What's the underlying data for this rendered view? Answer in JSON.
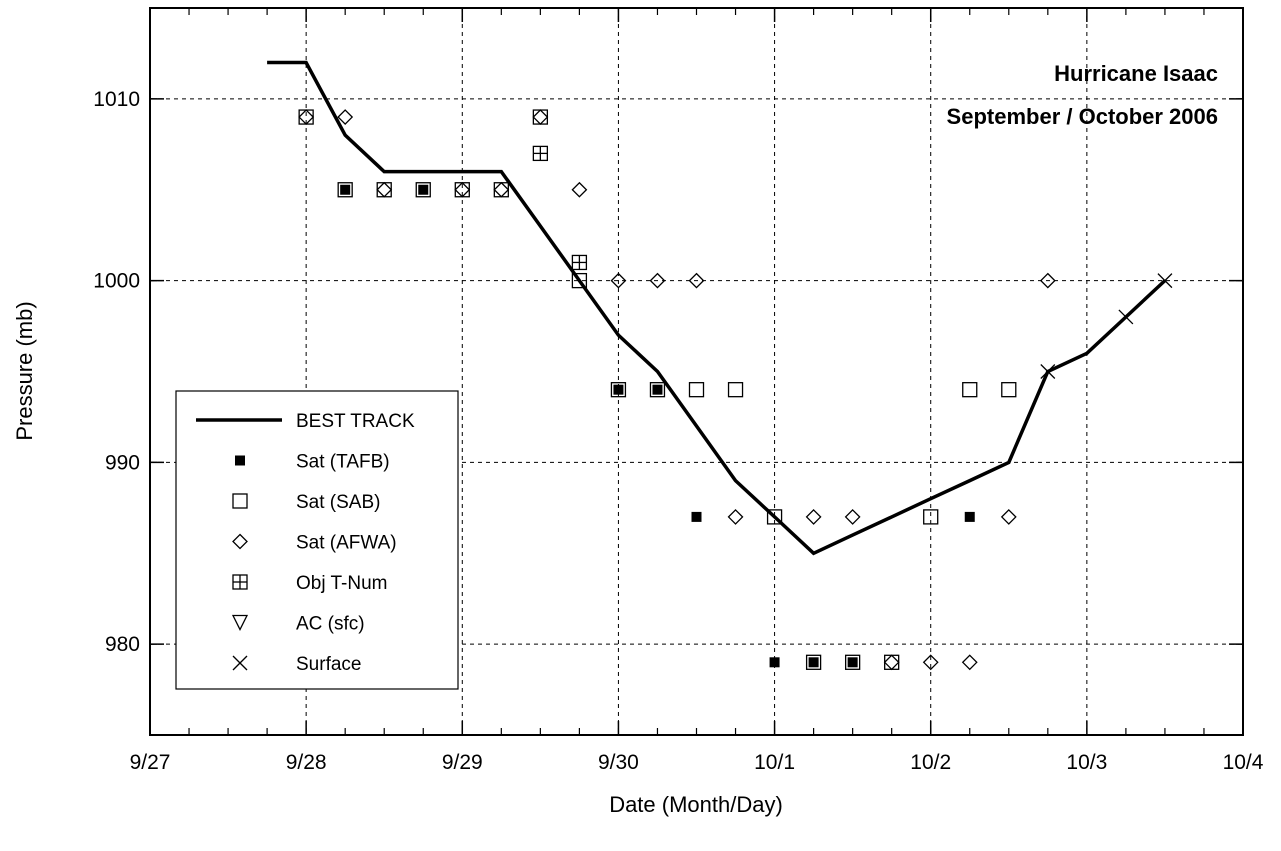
{
  "chart_data": {
    "type": "scatter",
    "title": "Hurricane Isaac",
    "subtitle": "September / October 2006",
    "xlabel": "Date (Month/Day)",
    "ylabel": "Pressure (mb)",
    "x_unit": "date (2006)",
    "xlim": [
      "2006-09-27 00:00",
      "2006-10-04 00:00"
    ],
    "ylim": [
      975,
      1015
    ],
    "x_ticks": [
      {
        "value": "2006-09-27 00:00",
        "label": "9/27"
      },
      {
        "value": "2006-09-28 00:00",
        "label": "9/28"
      },
      {
        "value": "2006-09-29 00:00",
        "label": "9/29"
      },
      {
        "value": "2006-09-30 00:00",
        "label": "9/30"
      },
      {
        "value": "2006-10-01 00:00",
        "label": "10/1"
      },
      {
        "value": "2006-10-02 00:00",
        "label": "10/2"
      },
      {
        "value": "2006-10-03 00:00",
        "label": "10/3"
      },
      {
        "value": "2006-10-04 00:00",
        "label": "10/4"
      }
    ],
    "y_ticks": [
      980,
      990,
      1000,
      1010
    ],
    "grid": true,
    "legend_position": "bottom-left",
    "series": [
      {
        "name": "BEST TRACK",
        "marker": "line",
        "points": [
          [
            "2006-09-27 18:00",
            1012
          ],
          [
            "2006-09-28 00:00",
            1012
          ],
          [
            "2006-09-28 06:00",
            1008
          ],
          [
            "2006-09-28 12:00",
            1006
          ],
          [
            "2006-09-28 18:00",
            1006
          ],
          [
            "2006-09-29 00:00",
            1006
          ],
          [
            "2006-09-29 06:00",
            1006
          ],
          [
            "2006-09-29 12:00",
            1003
          ],
          [
            "2006-09-29 18:00",
            1000
          ],
          [
            "2006-09-30 00:00",
            997
          ],
          [
            "2006-09-30 06:00",
            995
          ],
          [
            "2006-09-30 12:00",
            992
          ],
          [
            "2006-09-30 18:00",
            989
          ],
          [
            "2006-10-01 00:00",
            987
          ],
          [
            "2006-10-01 06:00",
            985
          ],
          [
            "2006-10-01 12:00",
            986
          ],
          [
            "2006-10-01 18:00",
            987
          ],
          [
            "2006-10-02 00:00",
            988
          ],
          [
            "2006-10-02 06:00",
            989
          ],
          [
            "2006-10-02 12:00",
            990
          ],
          [
            "2006-10-02 18:00",
            995
          ],
          [
            "2006-10-03 00:00",
            996
          ],
          [
            "2006-10-03 06:00",
            998
          ],
          [
            "2006-10-03 12:00",
            1000
          ]
        ]
      },
      {
        "name": "Sat (TAFB)",
        "marker": "filled-square",
        "points": [
          [
            "2006-09-28 06:00",
            1005
          ],
          [
            "2006-09-28 18:00",
            1005
          ],
          [
            "2006-09-30 00:00",
            994
          ],
          [
            "2006-09-30 06:00",
            994
          ],
          [
            "2006-09-30 12:00",
            987
          ],
          [
            "2006-10-01 00:00",
            979
          ],
          [
            "2006-10-01 06:00",
            979
          ],
          [
            "2006-10-01 12:00",
            979
          ],
          [
            "2006-10-02 06:00",
            987
          ]
        ]
      },
      {
        "name": "Sat (SAB)",
        "marker": "open-square",
        "points": [
          [
            "2006-09-28 00:00",
            1009
          ],
          [
            "2006-09-28 06:00",
            1005
          ],
          [
            "2006-09-28 12:00",
            1005
          ],
          [
            "2006-09-28 18:00",
            1005
          ],
          [
            "2006-09-29 00:00",
            1005
          ],
          [
            "2006-09-29 06:00",
            1005
          ],
          [
            "2006-09-29 12:00",
            1009
          ],
          [
            "2006-09-29 18:00",
            1000
          ],
          [
            "2006-09-30 00:00",
            994
          ],
          [
            "2006-09-30 06:00",
            994
          ],
          [
            "2006-09-30 12:00",
            994
          ],
          [
            "2006-09-30 18:00",
            994
          ],
          [
            "2006-10-01 00:00",
            987
          ],
          [
            "2006-10-01 06:00",
            979
          ],
          [
            "2006-10-01 12:00",
            979
          ],
          [
            "2006-10-01 18:00",
            979
          ],
          [
            "2006-10-02 00:00",
            987
          ],
          [
            "2006-10-02 06:00",
            994
          ],
          [
            "2006-10-02 12:00",
            994
          ]
        ]
      },
      {
        "name": "Sat (AFWA)",
        "marker": "open-diamond",
        "points": [
          [
            "2006-09-28 00:00",
            1009
          ],
          [
            "2006-09-28 06:00",
            1009
          ],
          [
            "2006-09-28 12:00",
            1005
          ],
          [
            "2006-09-29 00:00",
            1005
          ],
          [
            "2006-09-29 06:00",
            1005
          ],
          [
            "2006-09-29 12:00",
            1009
          ],
          [
            "2006-09-29 18:00",
            1005
          ],
          [
            "2006-09-30 00:00",
            1000
          ],
          [
            "2006-09-30 06:00",
            1000
          ],
          [
            "2006-09-30 12:00",
            1000
          ],
          [
            "2006-09-30 18:00",
            987
          ],
          [
            "2006-10-01 06:00",
            987
          ],
          [
            "2006-10-01 12:00",
            987
          ],
          [
            "2006-10-01 18:00",
            979
          ],
          [
            "2006-10-02 00:00",
            979
          ],
          [
            "2006-10-02 06:00",
            979
          ],
          [
            "2006-10-02 12:00",
            987
          ],
          [
            "2006-10-02 18:00",
            1000
          ]
        ]
      },
      {
        "name": "Obj T-Num",
        "marker": "crossed-square",
        "points": [
          [
            "2006-09-29 12:00",
            1007
          ],
          [
            "2006-09-29 18:00",
            1001
          ]
        ]
      },
      {
        "name": "AC (sfc)",
        "marker": "open-triangle-down",
        "points": []
      },
      {
        "name": "Surface",
        "marker": "x",
        "points": [
          [
            "2006-10-02 18:00",
            995
          ],
          [
            "2006-10-03 06:00",
            998
          ],
          [
            "2006-10-03 12:00",
            1000
          ]
        ]
      }
    ]
  },
  "colors": {
    "ink": "#000000",
    "background": "#ffffff",
    "grid": "#000000"
  }
}
